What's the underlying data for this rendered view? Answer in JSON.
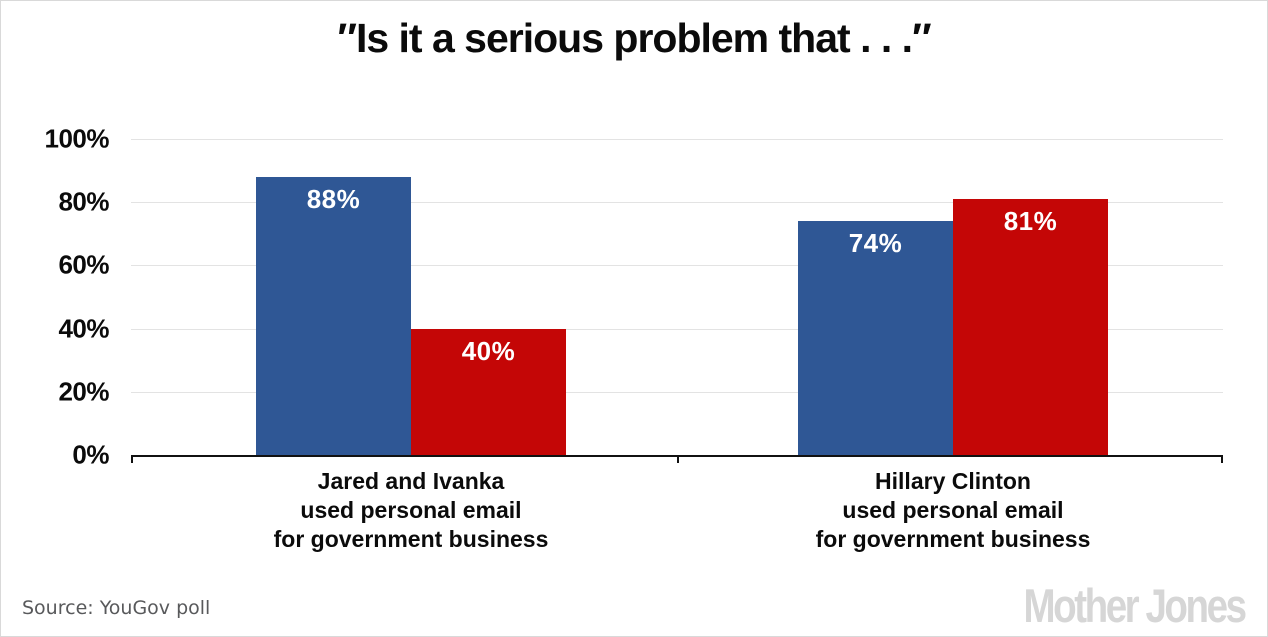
{
  "chart_data": {
    "type": "bar",
    "title": "″Is it a serious problem that . . .″",
    "categories": [
      [
        "Jared and Ivanka",
        "used personal email",
        "for government business"
      ],
      [
        "Hillary Clinton",
        "used personal email",
        "for government business"
      ]
    ],
    "series": [
      {
        "name": "blue",
        "color": "#2f5795",
        "values": [
          88,
          74
        ],
        "labels": [
          "88%",
          "74%"
        ]
      },
      {
        "name": "red",
        "color": "#c40606",
        "values": [
          40,
          81
        ],
        "labels": [
          "40%",
          "81%"
        ]
      }
    ],
    "y_axis": {
      "min": 0,
      "max": 100,
      "tick_labels": [
        "100%",
        "80%",
        "60%",
        "40%",
        "20%",
        "0%"
      ],
      "grid": true,
      "grid_color": "#e3e3e3",
      "axis_color": "#111111"
    },
    "value_label_color": "#ffffff",
    "legend_position": "none"
  },
  "footer": {
    "source": "Source: YouGov poll",
    "brand": "Mother Jones"
  }
}
